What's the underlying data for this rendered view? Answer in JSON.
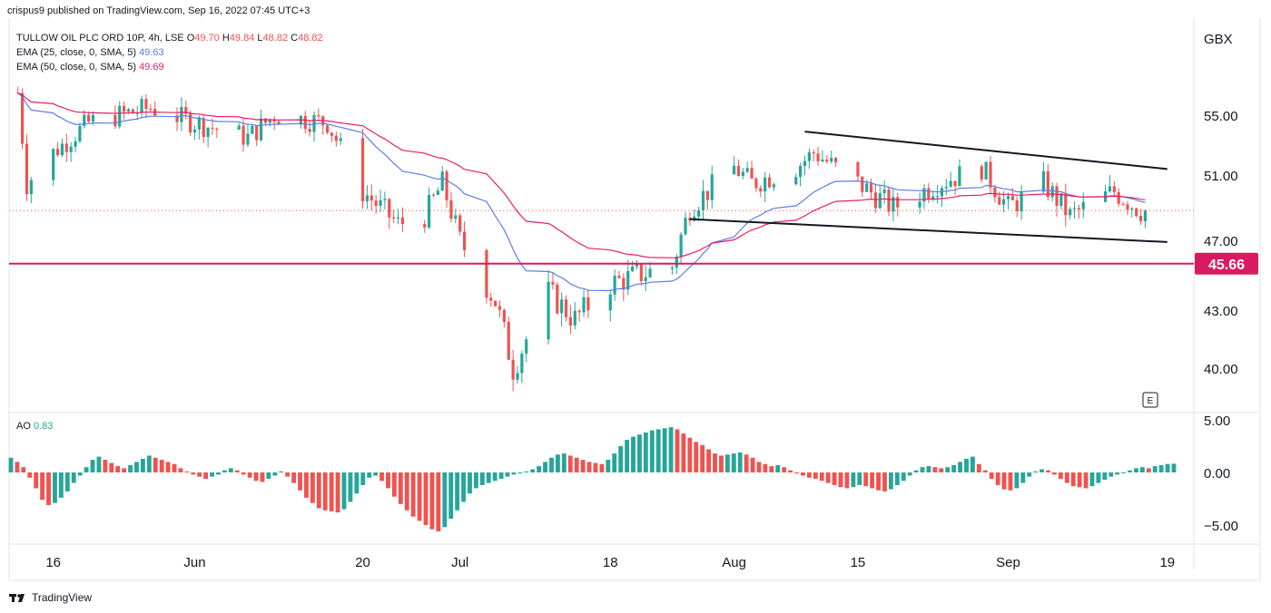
{
  "header": {
    "publish_line": "crispus9 published on TradingView.com, Sep 16, 2022 07:45 UTC+3"
  },
  "legend": {
    "symbol_line": "TULLOW OIL PLC ORD 10P, 4h, LSE",
    "ohlc": {
      "o_label": "O",
      "o": "49.70",
      "h_label": "H",
      "h": "49.84",
      "l_label": "L",
      "l": "48.82",
      "c_label": "C",
      "c": "48.82"
    },
    "ema25_label": "EMA (25, close, 0, SMA, 5)",
    "ema25_value": "49.63",
    "ema50_label": "EMA (50, close, 0, SMA, 5)",
    "ema50_value": "49.69"
  },
  "ao_legend": {
    "label": "AO",
    "value": "0.83"
  },
  "footer": {
    "brand": "TradingView"
  },
  "colors": {
    "up": "#26a69a",
    "down": "#ef5350",
    "ema25": "#5b7ee5",
    "ema50": "#e91e63",
    "support": "#d81b60",
    "channel": "#131722"
  },
  "chart_data": [
    {
      "type": "candlestick",
      "currency_label": "GBX",
      "y_ticks": [
        {
          "value": 55,
          "label": "55.00"
        },
        {
          "value": 51,
          "label": "51.00"
        },
        {
          "value": 47,
          "label": "47.00"
        },
        {
          "value": 43,
          "label": "43.00"
        },
        {
          "value": 40,
          "label": "40.00"
        }
      ],
      "x_ticks": [
        "16",
        "Jun",
        "20",
        "Jul",
        "18",
        "Aug",
        "15",
        "Sep",
        "19"
      ],
      "support_level": {
        "value": 45.66,
        "label": "45.66"
      },
      "last_price": 48.82,
      "e_marker": "E",
      "channel": {
        "upper": [
          [
            "Aug 9",
            53.9
          ],
          [
            "Sep 19",
            51.4
          ]
        ],
        "lower": [
          [
            "Jul 27",
            48.3
          ],
          [
            "Sep 19",
            46.9
          ]
        ]
      },
      "anchors": [
        {
          "x": "May 12",
          "price": 56.5
        },
        {
          "x": "May 13",
          "price": 50.5
        },
        {
          "x": "May 16",
          "price": 52.5
        },
        {
          "x": "May 20",
          "price": 54.5
        },
        {
          "x": "May 27",
          "price": 55.5
        },
        {
          "x": "Jun 1",
          "price": 54.5
        },
        {
          "x": "Jun 7",
          "price": 53.5
        },
        {
          "x": "Jun 10",
          "price": 55.0
        },
        {
          "x": "Jun 16",
          "price": 54.5
        },
        {
          "x": "Jun 20",
          "price": 50.0
        },
        {
          "x": "Jun 24",
          "price": 48.0
        },
        {
          "x": "Jun 27",
          "price": 48.5
        },
        {
          "x": "Jun 29",
          "price": 50.5
        },
        {
          "x": "Jul 1",
          "price": 47.0
        },
        {
          "x": "Jul 5",
          "price": 43.5
        },
        {
          "x": "Jul 7",
          "price": 40.0
        },
        {
          "x": "Jul 11",
          "price": 44.0
        },
        {
          "x": "Jul 14",
          "price": 42.5
        },
        {
          "x": "Jul 18",
          "price": 44.5
        },
        {
          "x": "Jul 21",
          "price": 45.0
        },
        {
          "x": "Jul 25",
          "price": 45.5
        },
        {
          "x": "Jul 27",
          "price": 49.0
        },
        {
          "x": "Aug 1",
          "price": 51.5
        },
        {
          "x": "Aug 3",
          "price": 50.5
        },
        {
          "x": "Aug 8",
          "price": 51.5
        },
        {
          "x": "Aug 10",
          "price": 52.5
        },
        {
          "x": "Aug 15",
          "price": 50.5
        },
        {
          "x": "Aug 19",
          "price": 49.0
        },
        {
          "x": "Aug 24",
          "price": 50.5
        },
        {
          "x": "Aug 29",
          "price": 51.5
        },
        {
          "x": "Sep 1",
          "price": 49.0
        },
        {
          "x": "Sep 5",
          "price": 50.5
        },
        {
          "x": "Sep 8",
          "price": 48.5
        },
        {
          "x": "Sep 13",
          "price": 50.0
        },
        {
          "x": "Sep 16",
          "price": 48.82
        }
      ],
      "series": [
        {
          "name": "EMA (25, close, 0, SMA, 5)"
        },
        {
          "name": "EMA (50, close, 0, SMA, 5)"
        }
      ]
    },
    {
      "type": "bar",
      "indicator": "AO",
      "y_ticks": [
        {
          "value": 5,
          "label": "5.00"
        },
        {
          "value": 0,
          "label": "0.00"
        },
        {
          "value": -5,
          "label": "−5.00"
        }
      ],
      "values": [
        1.4,
        1.0,
        0.5,
        -0.5,
        -1.5,
        -2.6,
        -3.1,
        -2.9,
        -2.4,
        -1.8,
        -1.0,
        -0.3,
        0.5,
        1.2,
        1.5,
        1.2,
        0.9,
        0.6,
        0.4,
        0.7,
        1.0,
        1.3,
        1.6,
        1.4,
        1.2,
        1.0,
        0.8,
        0.4,
        0.1,
        -0.2,
        -0.4,
        -0.6,
        -0.4,
        -0.2,
        0.2,
        0.4,
        0.2,
        -0.2,
        -0.5,
        -0.8,
        -0.9,
        -0.6,
        -0.3,
        0.1,
        -0.4,
        -1.0,
        -1.7,
        -2.4,
        -2.9,
        -3.4,
        -3.6,
        -3.7,
        -3.8,
        -3.5,
        -2.8,
        -2.0,
        -1.2,
        -0.5,
        -0.3,
        -0.8,
        -1.5,
        -2.3,
        -3.0,
        -3.6,
        -4.2,
        -4.6,
        -5.0,
        -5.4,
        -5.6,
        -5.2,
        -4.4,
        -3.6,
        -2.8,
        -2.0,
        -1.5,
        -1.2,
        -1.0,
        -0.8,
        -0.6,
        -0.4,
        -0.2,
        -0.1,
        0.1,
        0.3,
        0.6,
        1.0,
        1.4,
        1.7,
        1.8,
        1.6,
        1.4,
        1.2,
        1.0,
        0.9,
        0.8,
        1.2,
        1.8,
        2.5,
        3.1,
        3.4,
        3.6,
        3.8,
        4.0,
        4.1,
        4.2,
        4.3,
        4.1,
        3.7,
        3.3,
        2.9,
        2.6,
        2.2,
        1.8,
        1.6,
        1.7,
        1.8,
        1.9,
        1.7,
        1.4,
        1.0,
        0.8,
        0.6,
        0.7,
        0.5,
        0.2,
        -0.1,
        -0.3,
        -0.5,
        -0.6,
        -0.8,
        -1.0,
        -1.2,
        -1.4,
        -1.5,
        -1.4,
        -1.2,
        -1.3,
        -1.5,
        -1.7,
        -1.8,
        -1.6,
        -1.2,
        -0.8,
        -0.3,
        0.2,
        0.5,
        0.6,
        0.5,
        0.4,
        0.5,
        0.7,
        1.0,
        1.3,
        1.5,
        0.8,
        0.2,
        -0.6,
        -1.2,
        -1.6,
        -1.7,
        -1.5,
        -1.0,
        -0.4,
        0.1,
        0.3,
        0.2,
        -0.2,
        -0.6,
        -1.0,
        -1.3,
        -1.4,
        -1.5,
        -1.3,
        -1.0,
        -0.7,
        -0.4,
        -0.2,
        0.0,
        0.2,
        0.4,
        0.5,
        0.4,
        0.6,
        0.7,
        0.8,
        0.83
      ]
    }
  ]
}
